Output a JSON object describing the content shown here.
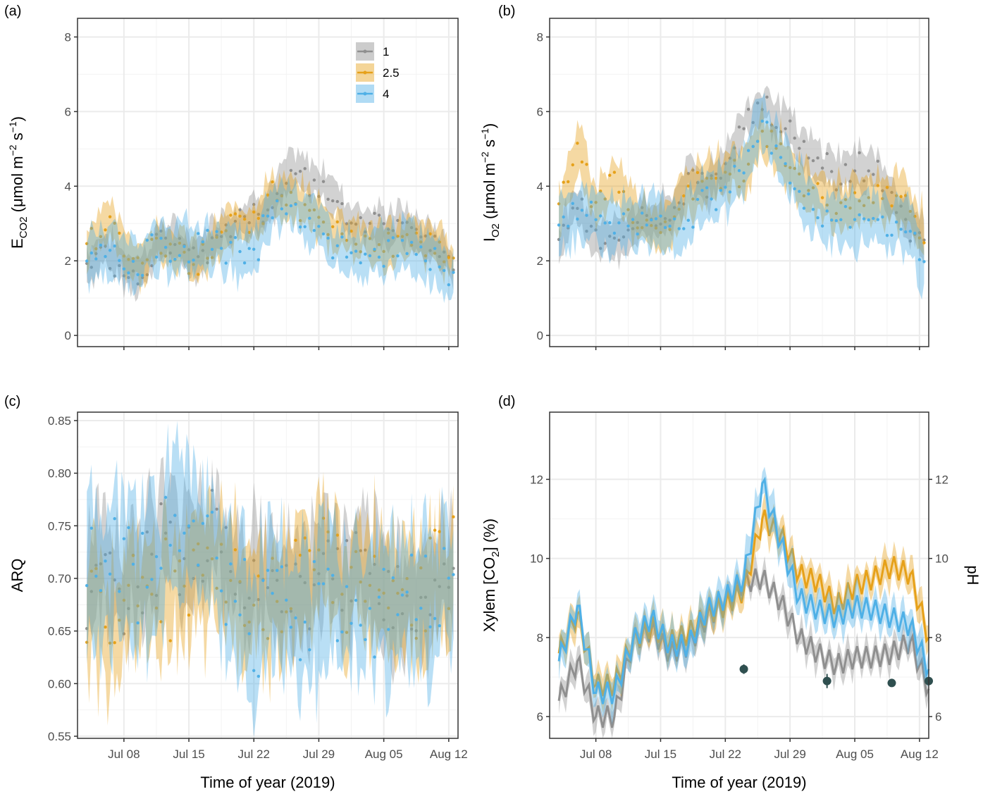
{
  "colors": {
    "s1": "#8f8f8f",
    "s2": "#e6a11a",
    "s3": "#4fb0e6",
    "ph": "#2f4f4f",
    "grid": "#ebebeb",
    "frame": "#333333"
  },
  "legend": {
    "position": "top-right of panel (a)",
    "entries": [
      "1",
      "2.5",
      "4"
    ]
  },
  "x_axis": {
    "title": "Time of year (2019)",
    "ticks": [
      "Jul 08",
      "Jul 15",
      "Jul 22",
      "Jul 29",
      "Aug 05",
      "Aug 12"
    ],
    "tick_days": [
      8,
      15,
      22,
      29,
      36,
      43
    ],
    "xlim_days": [
      3,
      44
    ]
  },
  "chart_data": [
    {
      "panel": "(a)",
      "type": "area",
      "ylabel": "E_CO2 (μmol m^-2 s^-1)",
      "ylabel_parts": {
        "main": "E",
        "sub": "CO2",
        "unit_open": " (μmol m",
        "sup1": "−2",
        "unit_mid": " s",
        "sup2": "−1",
        "unit_close": ")"
      },
      "ylim": [
        -0.3,
        8.5
      ],
      "yticks": [
        0,
        2,
        4,
        6,
        8
      ],
      "yticklabels": [
        "0",
        "2",
        "4",
        "6",
        "8"
      ],
      "x": [
        4,
        6,
        8,
        10,
        12,
        14,
        16,
        18,
        20,
        22,
        24,
        26,
        28,
        30,
        32,
        34,
        36,
        38,
        40,
        42,
        43.5
      ],
      "series": [
        {
          "name": "1",
          "values": [
            1.9,
            2.3,
            1.8,
            1.7,
            2.6,
            2.4,
            2.1,
            2.8,
            3.0,
            3.3,
            3.6,
            4.4,
            4.2,
            4.0,
            3.2,
            3.0,
            2.9,
            3.0,
            2.6,
            2.4,
            1.8
          ],
          "band": 0.45
        },
        {
          "name": "2.5",
          "values": [
            2.4,
            3.2,
            2.3,
            2.0,
            2.6,
            2.3,
            1.9,
            2.5,
            3.0,
            3.1,
            3.8,
            3.6,
            3.4,
            2.9,
            2.8,
            2.5,
            2.4,
            2.6,
            2.5,
            2.4,
            1.9
          ],
          "band": 0.5
        },
        {
          "name": "4",
          "values": [
            2.1,
            2.3,
            2.0,
            2.1,
            2.3,
            2.4,
            2.3,
            2.4,
            2.2,
            2.1,
            3.4,
            3.6,
            3.1,
            2.5,
            2.2,
            2.0,
            2.3,
            2.4,
            2.2,
            2.0,
            1.5
          ],
          "band": 0.6
        }
      ]
    },
    {
      "panel": "(b)",
      "type": "area",
      "ylabel": "I_O2 (μmol m^-2 s^-1)",
      "ylabel_parts": {
        "main": "I",
        "sub": "O2",
        "unit_open": " (μmol m",
        "sup1": "−2",
        "unit_mid": " s",
        "sup2": "−1",
        "unit_close": ")"
      },
      "ylim": [
        -0.3,
        8.5
      ],
      "yticks": [
        0,
        2,
        4,
        6,
        8
      ],
      "yticklabels": [
        "0",
        "2",
        "4",
        "6",
        "8"
      ],
      "x": [
        4,
        6,
        8,
        10,
        12,
        14,
        16,
        18,
        20,
        22,
        24,
        26,
        28,
        30,
        32,
        34,
        36,
        38,
        40,
        42,
        43.5
      ],
      "series": [
        {
          "name": "1",
          "values": [
            2.6,
            3.4,
            2.7,
            2.5,
            3.0,
            3.1,
            3.2,
            4.2,
            4.0,
            4.6,
            5.6,
            6.2,
            5.8,
            5.0,
            4.6,
            4.4,
            4.4,
            4.6,
            3.6,
            3.0,
            2.6
          ],
          "band": 0.5
        },
        {
          "name": "2.5",
          "values": [
            3.2,
            5.0,
            3.5,
            4.2,
            3.3,
            3.0,
            3.0,
            3.8,
            4.3,
            4.4,
            4.5,
            5.3,
            4.9,
            4.0,
            3.8,
            3.5,
            3.5,
            3.6,
            3.7,
            3.5,
            2.7
          ],
          "band": 0.6
        },
        {
          "name": "4",
          "values": [
            2.9,
            3.3,
            3.1,
            3.0,
            3.0,
            3.2,
            2.9,
            3.2,
            3.6,
            3.9,
            4.6,
            5.8,
            4.8,
            3.9,
            3.2,
            3.1,
            3.0,
            3.2,
            3.0,
            2.9,
            1.8
          ],
          "band": 0.65
        }
      ]
    },
    {
      "panel": "(c)",
      "type": "area",
      "ylabel": "ARQ",
      "ylim": [
        0.548,
        0.858
      ],
      "yticks": [
        0.55,
        0.6,
        0.65,
        0.7,
        0.75,
        0.8,
        0.85
      ],
      "yticklabels": [
        "0.55",
        "0.60",
        "0.65",
        "0.70",
        "0.75",
        "0.80",
        "0.85"
      ],
      "x": [
        4,
        6,
        8,
        10,
        12,
        14,
        16,
        18,
        20,
        22,
        24,
        26,
        28,
        30,
        32,
        34,
        36,
        38,
        40,
        42,
        43.5
      ],
      "series": [
        {
          "name": "1",
          "values": [
            0.7,
            0.72,
            0.7,
            0.71,
            0.74,
            0.73,
            0.74,
            0.74,
            0.7,
            0.71,
            0.69,
            0.69,
            0.7,
            0.72,
            0.7,
            0.7,
            0.68,
            0.69,
            0.68,
            0.7,
            0.69
          ],
          "band": 0.045
        },
        {
          "name": "2.5",
          "values": [
            0.68,
            0.66,
            0.67,
            0.68,
            0.68,
            0.7,
            0.69,
            0.7,
            0.7,
            0.69,
            0.68,
            0.69,
            0.7,
            0.71,
            0.69,
            0.7,
            0.7,
            0.7,
            0.69,
            0.7,
            0.71
          ],
          "band": 0.05
        },
        {
          "name": "4",
          "values": [
            0.7,
            0.71,
            0.72,
            0.7,
            0.73,
            0.76,
            0.75,
            0.72,
            0.67,
            0.66,
            0.68,
            0.65,
            0.66,
            0.68,
            0.68,
            0.66,
            0.68,
            0.67,
            0.68,
            0.69,
            0.69
          ],
          "band": 0.06
        }
      ]
    },
    {
      "panel": "(d)",
      "type": "line",
      "ylabel": "Xylem [CO2] (%)",
      "ylabel_parts": {
        "main": "Xylem [CO",
        "sub": "2",
        "unit_close": "] (%)"
      },
      "ylabel_right": "pH",
      "ylim": [
        5.45,
        13.7
      ],
      "yticks": [
        6,
        8,
        10,
        12
      ],
      "yticklabels": [
        "6",
        "8",
        "10",
        "12"
      ],
      "x": [
        4,
        6,
        8,
        10,
        12,
        14,
        16,
        18,
        20,
        22,
        24,
        26,
        28,
        30,
        32,
        34,
        36,
        38,
        40,
        42,
        44
      ],
      "series": [
        {
          "name": "1",
          "values": [
            6.4,
            7.4,
            6.0,
            6.0,
            7.9,
            8.2,
            7.6,
            7.8,
            8.5,
            8.9,
            9.4,
            9.5,
            8.9,
            8.0,
            7.6,
            7.3,
            7.5,
            7.5,
            7.6,
            7.9,
            6.7
          ],
          "band": 0.3
        },
        {
          "name": "2.5",
          "values": [
            7.6,
            8.6,
            6.8,
            6.8,
            7.9,
            8.3,
            7.9,
            8.1,
            8.6,
            8.8,
            9.2,
            11.0,
            10.6,
            9.6,
            9.4,
            8.8,
            9.3,
            9.5,
            9.8,
            9.6,
            8.0
          ],
          "band": 0.35
        },
        {
          "name": "4",
          "values": [
            7.4,
            8.8,
            6.6,
            6.6,
            7.9,
            8.5,
            7.8,
            7.8,
            8.7,
            9.0,
            9.5,
            11.9,
            10.4,
            9.0,
            8.7,
            8.5,
            8.8,
            8.7,
            8.5,
            8.3,
            7.2
          ],
          "band": 0.4
        }
      ],
      "ph_points": {
        "x": [
          24,
          33,
          40,
          44
        ],
        "values": [
          7.2,
          6.9,
          6.85,
          6.9
        ],
        "errors": [
          0.12,
          0.18,
          0.06,
          0.1
        ]
      }
    }
  ],
  "panel_tags": [
    "(a)",
    "(b)",
    "(c)",
    "(d)"
  ]
}
